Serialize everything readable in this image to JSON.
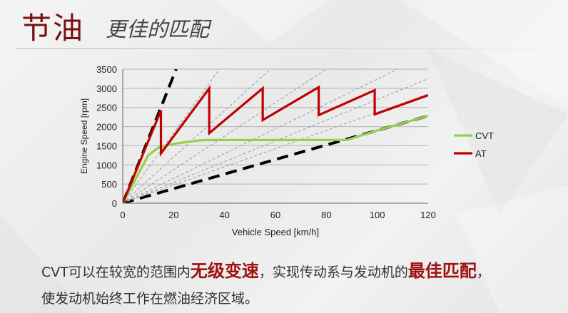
{
  "header": {
    "title": "节油",
    "subtitle": "更佳的匹配"
  },
  "caption": {
    "line1_a": "CVT可以在较宽的范围内",
    "line1_hl1": "无级变速",
    "line1_b": "，实现传动系与发动机的",
    "line1_hl2": "最佳匹配",
    "line1_c": "，",
    "line2": "使发动机始终工作在燃油经济区域。"
  },
  "colors": {
    "title": "#7a1010",
    "cvt": "#92d050",
    "at": "#c00000",
    "highlight": "#a01010"
  },
  "chart_data": {
    "type": "line",
    "xlabel": "Vehicle Speed [km/h]",
    "ylabel": "Engine Speed [rpm]",
    "xlim": [
      0,
      120
    ],
    "ylim": [
      0,
      3500
    ],
    "xticks": [
      0,
      20,
      40,
      60,
      80,
      100,
      120
    ],
    "yticks": [
      0,
      500,
      1000,
      1500,
      2000,
      2500,
      3000,
      3500
    ],
    "grid": "horizontal",
    "legend_position": "right",
    "series": [
      {
        "name": "CVT",
        "color": "#92d050",
        "points": [
          [
            0,
            0
          ],
          [
            10,
            1250
          ],
          [
            14,
            1450
          ],
          [
            20,
            1550
          ],
          [
            30,
            1640
          ],
          [
            34,
            1650
          ],
          [
            60,
            1650
          ],
          [
            88,
            1650
          ],
          [
            100,
            1900
          ],
          [
            120,
            2280
          ]
        ]
      },
      {
        "name": "AT",
        "color": "#c00000",
        "points": [
          [
            0,
            0
          ],
          [
            15,
            2420
          ],
          [
            15,
            1300
          ],
          [
            34,
            3000
          ],
          [
            34,
            1830
          ],
          [
            55,
            3000
          ],
          [
            55,
            2170
          ],
          [
            77,
            3030
          ],
          [
            77,
            2300
          ],
          [
            99,
            2950
          ],
          [
            99,
            2320
          ],
          [
            120,
            2820
          ]
        ]
      }
    ],
    "reference_lines": [
      {
        "style": "black-dashed",
        "points": [
          [
            0,
            0
          ],
          [
            21,
            3500
          ]
        ]
      },
      {
        "style": "black-dashed",
        "points": [
          [
            0,
            0
          ],
          [
            120,
            2280
          ]
        ]
      },
      {
        "style": "gray-dashed",
        "points": [
          [
            0,
            0
          ],
          [
            38,
            3500
          ]
        ]
      },
      {
        "style": "gray-dashed",
        "points": [
          [
            0,
            0
          ],
          [
            58,
            3500
          ]
        ]
      },
      {
        "style": "gray-dashed",
        "points": [
          [
            0,
            0
          ],
          [
            80,
            3500
          ]
        ]
      },
      {
        "style": "gray-dashed",
        "points": [
          [
            0,
            0
          ],
          [
            108,
            3500
          ]
        ]
      },
      {
        "style": "gray-dashed",
        "points": [
          [
            0,
            0
          ],
          [
            120,
            3250
          ]
        ]
      },
      {
        "style": "gray-dashed",
        "points": [
          [
            0,
            0
          ],
          [
            120,
            2850
          ]
        ]
      }
    ]
  }
}
